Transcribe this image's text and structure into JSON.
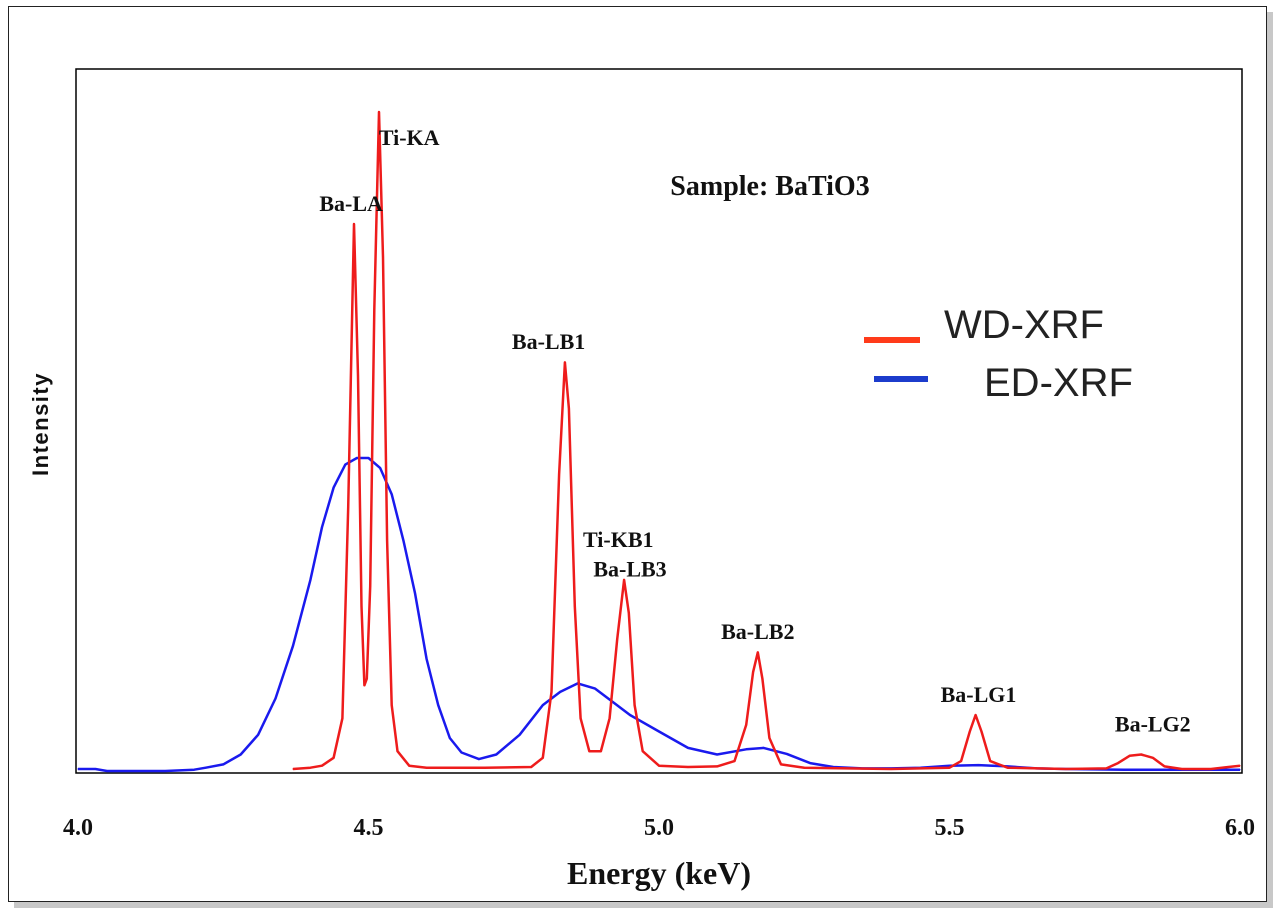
{
  "chart_data": {
    "type": "line",
    "title": "Sample: BaTiO3",
    "xlabel": "Energy (keV)",
    "ylabel": "Intensity",
    "xlim": [
      4.0,
      6.0
    ],
    "ylim": [
      0,
      100
    ],
    "x_ticks": [
      "4.0",
      "4.5",
      "5.0",
      "5.5",
      "6.0"
    ],
    "grid": false,
    "legend_position": "right",
    "series": [
      {
        "name": "WD-XRF",
        "color": "#ee1c1c",
        "legend_color": "#ff3b1a",
        "points": [
          [
            4.37,
            0.3
          ],
          [
            4.4,
            0.5
          ],
          [
            4.42,
            0.8
          ],
          [
            4.44,
            2.0
          ],
          [
            4.455,
            8.0
          ],
          [
            4.465,
            40.0
          ],
          [
            4.475,
            83.0
          ],
          [
            4.482,
            60.0
          ],
          [
            4.488,
            25.0
          ],
          [
            4.493,
            13.0
          ],
          [
            4.497,
            14.0
          ],
          [
            4.503,
            28.0
          ],
          [
            4.51,
            70.0
          ],
          [
            4.518,
            100.0
          ],
          [
            4.525,
            78.0
          ],
          [
            4.532,
            35.0
          ],
          [
            4.54,
            10.0
          ],
          [
            4.55,
            3.0
          ],
          [
            4.57,
            0.8
          ],
          [
            4.6,
            0.5
          ],
          [
            4.7,
            0.5
          ],
          [
            4.78,
            0.6
          ],
          [
            4.8,
            2.0
          ],
          [
            4.815,
            12.0
          ],
          [
            4.828,
            45.0
          ],
          [
            4.838,
            62.0
          ],
          [
            4.845,
            55.0
          ],
          [
            4.855,
            25.0
          ],
          [
            4.865,
            8.0
          ],
          [
            4.88,
            3.0
          ],
          [
            4.9,
            3.0
          ],
          [
            4.915,
            8.0
          ],
          [
            4.928,
            20.0
          ],
          [
            4.94,
            29.0
          ],
          [
            4.948,
            24.0
          ],
          [
            4.958,
            10.0
          ],
          [
            4.972,
            3.0
          ],
          [
            5.0,
            0.8
          ],
          [
            5.05,
            0.6
          ],
          [
            5.1,
            0.7
          ],
          [
            5.13,
            1.5
          ],
          [
            5.15,
            7.0
          ],
          [
            5.162,
            15.0
          ],
          [
            5.17,
            18.0
          ],
          [
            5.178,
            14.0
          ],
          [
            5.19,
            5.0
          ],
          [
            5.21,
            1.0
          ],
          [
            5.25,
            0.5
          ],
          [
            5.4,
            0.3
          ],
          [
            5.5,
            0.5
          ],
          [
            5.52,
            1.5
          ],
          [
            5.535,
            6.0
          ],
          [
            5.545,
            8.5
          ],
          [
            5.555,
            6.0
          ],
          [
            5.57,
            1.5
          ],
          [
            5.6,
            0.5
          ],
          [
            5.7,
            0.3
          ],
          [
            5.77,
            0.4
          ],
          [
            5.79,
            1.2
          ],
          [
            5.81,
            2.3
          ],
          [
            5.83,
            2.5
          ],
          [
            5.85,
            2.0
          ],
          [
            5.87,
            0.7
          ],
          [
            5.9,
            0.3
          ],
          [
            5.95,
            0.3
          ],
          [
            5.98,
            0.6
          ],
          [
            6.0,
            0.8
          ]
        ]
      },
      {
        "name": "ED-XRF",
        "color": "#1a1aee",
        "legend_color": "#1c3ccc",
        "points": [
          [
            4.0,
            0.3
          ],
          [
            4.03,
            0.3
          ],
          [
            4.05,
            0.0
          ],
          [
            4.1,
            0.0
          ],
          [
            4.15,
            0.0
          ],
          [
            4.2,
            0.2
          ],
          [
            4.22,
            0.5
          ],
          [
            4.25,
            1.0
          ],
          [
            4.28,
            2.5
          ],
          [
            4.31,
            5.5
          ],
          [
            4.34,
            11.0
          ],
          [
            4.37,
            19.0
          ],
          [
            4.4,
            29.0
          ],
          [
            4.42,
            37.0
          ],
          [
            4.44,
            43.0
          ],
          [
            4.46,
            46.5
          ],
          [
            4.48,
            47.5
          ],
          [
            4.5,
            47.5
          ],
          [
            4.52,
            46.0
          ],
          [
            4.54,
            42.0
          ],
          [
            4.56,
            35.0
          ],
          [
            4.58,
            27.0
          ],
          [
            4.6,
            17.0
          ],
          [
            4.62,
            10.0
          ],
          [
            4.64,
            5.0
          ],
          [
            4.66,
            2.8
          ],
          [
            4.69,
            1.8
          ],
          [
            4.72,
            2.5
          ],
          [
            4.76,
            5.5
          ],
          [
            4.8,
            10.0
          ],
          [
            4.83,
            12.0
          ],
          [
            4.86,
            13.3
          ],
          [
            4.89,
            12.5
          ],
          [
            4.92,
            10.5
          ],
          [
            4.95,
            8.5
          ],
          [
            5.0,
            6.0
          ],
          [
            5.05,
            3.5
          ],
          [
            5.1,
            2.5
          ],
          [
            5.15,
            3.3
          ],
          [
            5.18,
            3.5
          ],
          [
            5.22,
            2.6
          ],
          [
            5.26,
            1.2
          ],
          [
            5.3,
            0.6
          ],
          [
            5.35,
            0.4
          ],
          [
            5.4,
            0.4
          ],
          [
            5.45,
            0.5
          ],
          [
            5.5,
            0.8
          ],
          [
            5.55,
            0.9
          ],
          [
            5.6,
            0.7
          ],
          [
            5.65,
            0.4
          ],
          [
            5.7,
            0.3
          ],
          [
            5.8,
            0.2
          ],
          [
            5.9,
            0.2
          ],
          [
            6.0,
            0.2
          ]
        ]
      }
    ],
    "annotations": [
      {
        "text": "Ba-LA",
        "x": 4.47,
        "y": 85
      },
      {
        "text": "Ti-KA",
        "x": 4.57,
        "y": 95
      },
      {
        "text": "Ba-LB1",
        "x": 4.81,
        "y": 64
      },
      {
        "text": "Ti-KB1",
        "x": 4.93,
        "y": 34
      },
      {
        "text": "Ba-LB3",
        "x": 4.95,
        "y": 29.5
      },
      {
        "text": "Ba-LB2",
        "x": 5.17,
        "y": 20
      },
      {
        "text": "Ba-LG1",
        "x": 5.55,
        "y": 10.5
      },
      {
        "text": "Ba-LG2",
        "x": 5.85,
        "y": 6
      }
    ]
  }
}
